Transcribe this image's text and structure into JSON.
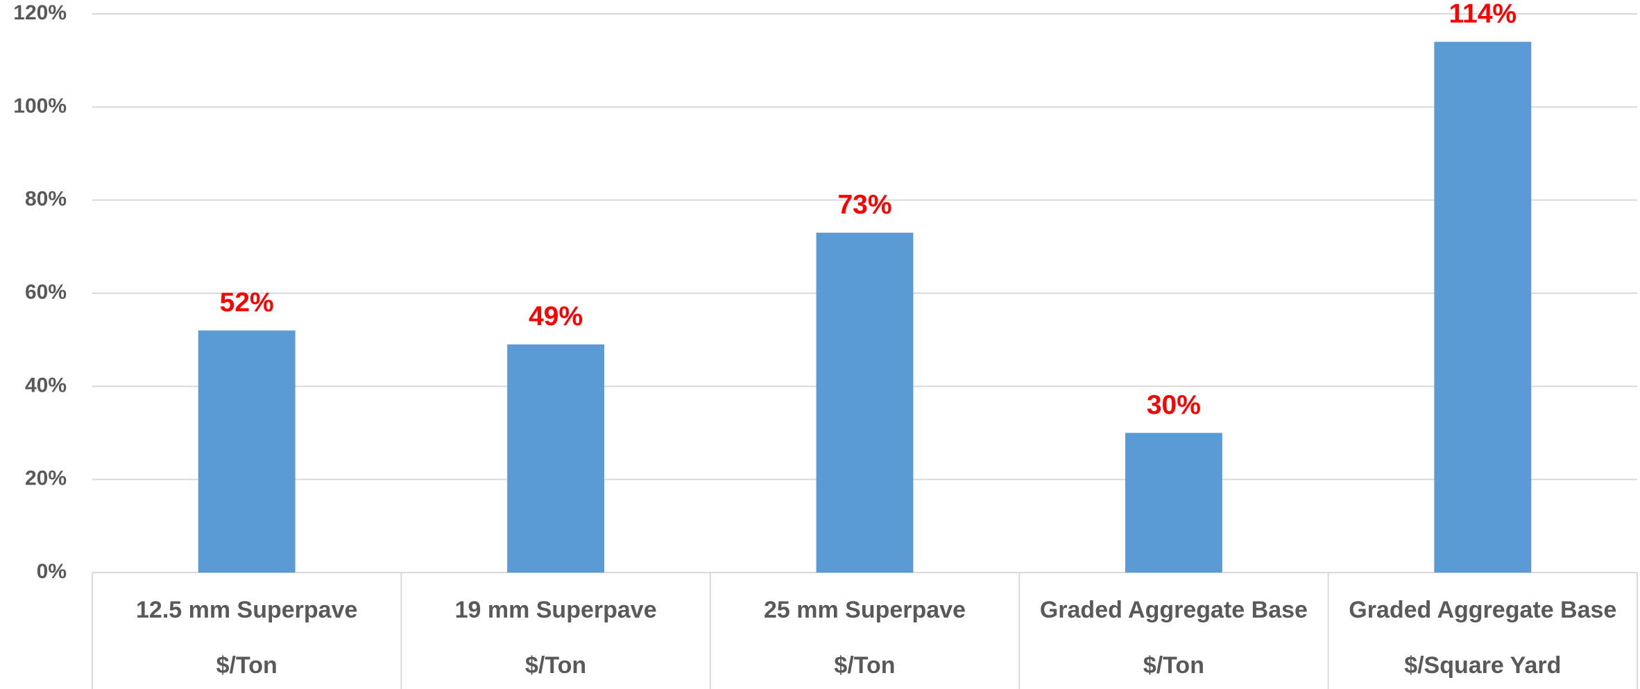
{
  "chart_data": {
    "type": "bar",
    "categories": [
      "12.5 mm Superpave",
      "19 mm Superpave",
      "25 mm Superpave",
      "Graded Aggregate Base",
      "Graded Aggregate Base"
    ],
    "category_units": [
      "$/Ton",
      "$/Ton",
      "$/Ton",
      "$/Ton",
      "$/Square Yard"
    ],
    "values": [
      52,
      49,
      73,
      30,
      114
    ],
    "value_labels": [
      "52%",
      "49%",
      "73%",
      "30%",
      "114%"
    ],
    "color": "#5b9bd5",
    "ylim": [
      0,
      120
    ],
    "yticks": [
      {
        "value": 0,
        "label": "0%"
      },
      {
        "value": 20,
        "label": "20%"
      },
      {
        "value": 40,
        "label": "40%"
      },
      {
        "value": 60,
        "label": "60%"
      },
      {
        "value": 80,
        "label": "80%"
      },
      {
        "value": 100,
        "label": "100%"
      },
      {
        "value": 120,
        "label": "120%"
      }
    ],
    "grid": true
  }
}
